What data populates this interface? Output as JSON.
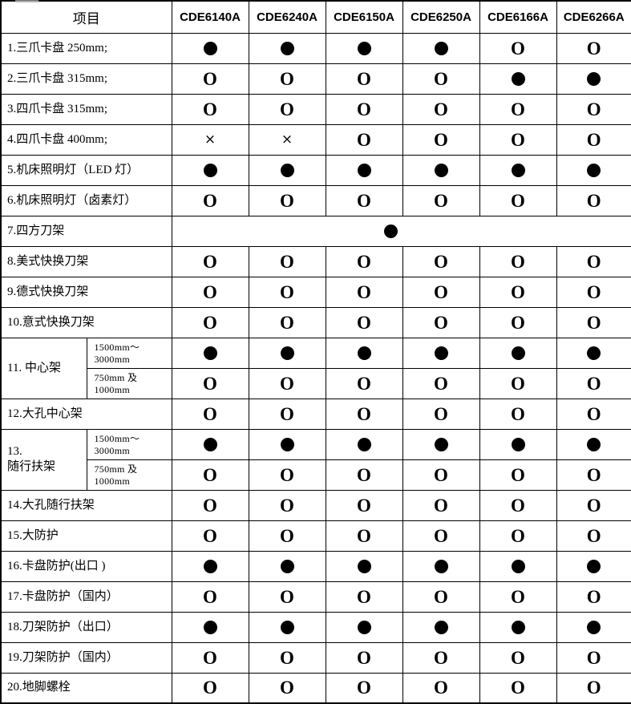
{
  "table": {
    "item_header": "项目",
    "models": [
      "CDE6140A",
      "CDE6240A",
      "CDE6150A",
      "CDE6250A",
      "CDE6166A",
      "CDE6266A"
    ],
    "symbols": {
      "filled_circle": "●",
      "open_circle": "O",
      "cross": "×"
    },
    "rows": [
      {
        "label": "1.三爪卡盘 250mm;",
        "cells": [
          "●",
          "●",
          "●",
          "●",
          "O",
          "O"
        ]
      },
      {
        "label": "2.三爪卡盘 315mm;",
        "cells": [
          "O",
          "O",
          "O",
          "O",
          "●",
          "●"
        ]
      },
      {
        "label": "3.四爪卡盘 315mm;",
        "cells": [
          "O",
          "O",
          "O",
          "O",
          "O",
          "O"
        ]
      },
      {
        "label": "4.四爪卡盘 400mm;",
        "cells": [
          "×",
          "×",
          "O",
          "O",
          "O",
          "O"
        ]
      },
      {
        "label": "5.机床照明灯（LED 灯）",
        "cells": [
          "●",
          "●",
          "●",
          "●",
          "●",
          "●"
        ]
      },
      {
        "label": "6.机床照明灯（卤素灯）",
        "cells": [
          "O",
          "O",
          "O",
          "O",
          "O",
          "O"
        ]
      },
      {
        "label": "7.四方刀架",
        "merged": true,
        "merged_symbol": "●"
      },
      {
        "label": "8.美式快换刀架",
        "cells": [
          "O",
          "O",
          "O",
          "O",
          "O",
          "O"
        ]
      },
      {
        "label": "9.德式快换刀架",
        "cells": [
          "O",
          "O",
          "O",
          "O",
          "O",
          "O"
        ]
      },
      {
        "label": "10.意式快换刀架",
        "cells": [
          "O",
          "O",
          "O",
          "O",
          "O",
          "O"
        ]
      },
      {
        "label": "11. 中心架",
        "rowspan": 2,
        "sub": "1500mm～3000mm",
        "cells": [
          "●",
          "●",
          "●",
          "●",
          "●",
          "●"
        ]
      },
      {
        "sub": "750mm 及 1000mm",
        "cells": [
          "O",
          "O",
          "O",
          "O",
          "O",
          "O"
        ]
      },
      {
        "label": "12.大孔中心架",
        "cells": [
          "O",
          "O",
          "O",
          "O",
          "O",
          "O"
        ]
      },
      {
        "label": "13.\n随行扶架",
        "rowspan": 2,
        "sub": "1500mm～3000mm",
        "cells": [
          "●",
          "●",
          "●",
          "●",
          "●",
          "●"
        ]
      },
      {
        "sub": "750mm 及 1000mm",
        "cells": [
          "O",
          "O",
          "O",
          "O",
          "O",
          "O"
        ]
      },
      {
        "label": "14.大孔随行扶架",
        "cells": [
          "O",
          "O",
          "O",
          "O",
          "O",
          "O"
        ]
      },
      {
        "label": "15.大防护",
        "cells": [
          "O",
          "O",
          "O",
          "O",
          "O",
          "O"
        ]
      },
      {
        "label": "16.卡盘防护(出口 )",
        "cells": [
          "●",
          "●",
          "●",
          "●",
          "●",
          "●"
        ]
      },
      {
        "label": "17.卡盘防护（国内）",
        "cells": [
          "O",
          "O",
          "O",
          "O",
          "O",
          "O"
        ]
      },
      {
        "label": "18.刀架防护（出口）",
        "cells": [
          "●",
          "●",
          "●",
          "●",
          "●",
          "●"
        ]
      },
      {
        "label": "19.刀架防护（国内）",
        "cells": [
          "O",
          "O",
          "O",
          "O",
          "O",
          "O"
        ]
      },
      {
        "label": "20.地脚螺栓",
        "cells": [
          "O",
          "O",
          "O",
          "O",
          "O",
          "O"
        ]
      }
    ]
  }
}
